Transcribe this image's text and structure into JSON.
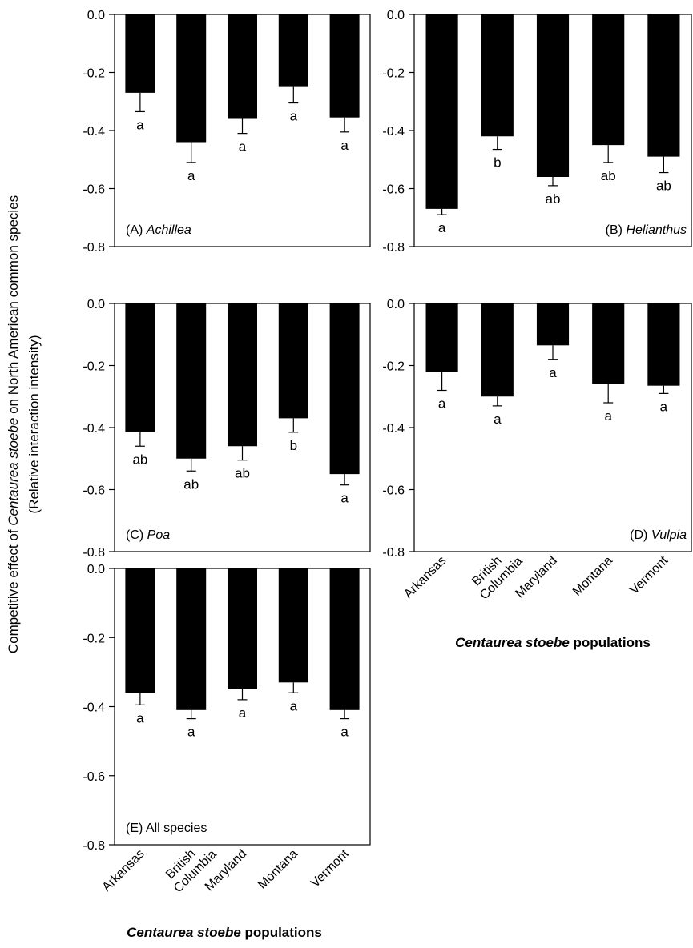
{
  "y_axis_label_line1": {
    "pre": "Competitive effect of ",
    "italic": "Centaurea stoebe",
    "post": " on North American common species"
  },
  "y_axis_label_line2": "(Relative interaction intensity)",
  "x_axis_title": {
    "italic": "Centaurea stoebe",
    "post": " populations"
  },
  "chart_data": [
    {
      "type": "bar",
      "panel": "A",
      "label": {
        "prefix": "(A) ",
        "name": "Achillea",
        "italic": true,
        "position": "bottom-left"
      },
      "categories": [
        "Arkansas",
        "British Columbia",
        "Maryland",
        "Montana",
        "Vermont"
      ],
      "values": [
        -0.27,
        -0.44,
        -0.36,
        -0.25,
        -0.355
      ],
      "errors": [
        0.065,
        0.07,
        0.05,
        0.055,
        0.05
      ],
      "letters": [
        "a",
        "a",
        "a",
        "a",
        "a"
      ],
      "ylim": [
        -0.8,
        0.0
      ],
      "yticks": [
        "0.0",
        "-0.2",
        "-0.4",
        "-0.6",
        "-0.8"
      ],
      "bar_color": "#000000"
    },
    {
      "type": "bar",
      "panel": "B",
      "label": {
        "prefix": "(B) ",
        "name": "Helianthus",
        "italic": true,
        "position": "bottom-right"
      },
      "categories": [
        "Arkansas",
        "British Columbia",
        "Maryland",
        "Montana",
        "Vermont"
      ],
      "values": [
        -0.67,
        -0.42,
        -0.56,
        -0.45,
        -0.49
      ],
      "errors": [
        0.02,
        0.045,
        0.03,
        0.06,
        0.055
      ],
      "letters": [
        "a",
        "b",
        "ab",
        "ab",
        "ab"
      ],
      "ylim": [
        -0.8,
        0.0
      ],
      "yticks": [
        "0.0",
        "-0.2",
        "-0.4",
        "-0.6",
        "-0.8"
      ],
      "bar_color": "#000000"
    },
    {
      "type": "bar",
      "panel": "C",
      "label": {
        "prefix": "(C) ",
        "name": "Poa",
        "italic": true,
        "position": "bottom-left"
      },
      "categories": [
        "Arkansas",
        "British Columbia",
        "Maryland",
        "Montana",
        "Vermont"
      ],
      "values": [
        -0.415,
        -0.5,
        -0.46,
        -0.37,
        -0.55
      ],
      "errors": [
        0.045,
        0.04,
        0.045,
        0.045,
        0.035
      ],
      "letters": [
        "ab",
        "ab",
        "ab",
        "b",
        "a"
      ],
      "ylim": [
        -0.8,
        0.0
      ],
      "yticks": [
        "0.0",
        "-0.2",
        "-0.4",
        "-0.6",
        "-0.8"
      ],
      "bar_color": "#000000"
    },
    {
      "type": "bar",
      "panel": "D",
      "label": {
        "prefix": "(D) ",
        "name": "Vulpia",
        "italic": true,
        "position": "bottom-right"
      },
      "categories": [
        "Arkansas",
        "British Columbia",
        "Maryland",
        "Montana",
        "Vermont"
      ],
      "values": [
        -0.22,
        -0.3,
        -0.135,
        -0.26,
        -0.265
      ],
      "errors": [
        0.06,
        0.03,
        0.045,
        0.06,
        0.025
      ],
      "letters": [
        "a",
        "a",
        "a",
        "a",
        "a"
      ],
      "ylim": [
        -0.8,
        0.0
      ],
      "yticks": [
        "0.0",
        "-0.2",
        "-0.4",
        "-0.6",
        "-0.8"
      ],
      "bar_color": "#000000"
    },
    {
      "type": "bar",
      "panel": "E",
      "label": {
        "prefix": "(E) ",
        "name": "All species",
        "italic": false,
        "position": "bottom-left"
      },
      "categories": [
        "Arkansas",
        "British Columbia",
        "Maryland",
        "Montana",
        "Vermont"
      ],
      "values": [
        -0.36,
        -0.41,
        -0.35,
        -0.33,
        -0.41
      ],
      "errors": [
        0.035,
        0.025,
        0.03,
        0.03,
        0.025
      ],
      "letters": [
        "a",
        "a",
        "a",
        "a",
        "a"
      ],
      "ylim": [
        -0.8,
        0.0
      ],
      "yticks": [
        "0.0",
        "-0.2",
        "-0.4",
        "-0.6",
        "-0.8"
      ],
      "bar_color": "#000000"
    }
  ],
  "category_tick_labels": [
    {
      "lines": [
        "Arkansas"
      ]
    },
    {
      "lines": [
        "British",
        "Columbia"
      ]
    },
    {
      "lines": [
        "Maryland"
      ]
    },
    {
      "lines": [
        "Montana"
      ]
    },
    {
      "lines": [
        "Vermont"
      ]
    }
  ]
}
